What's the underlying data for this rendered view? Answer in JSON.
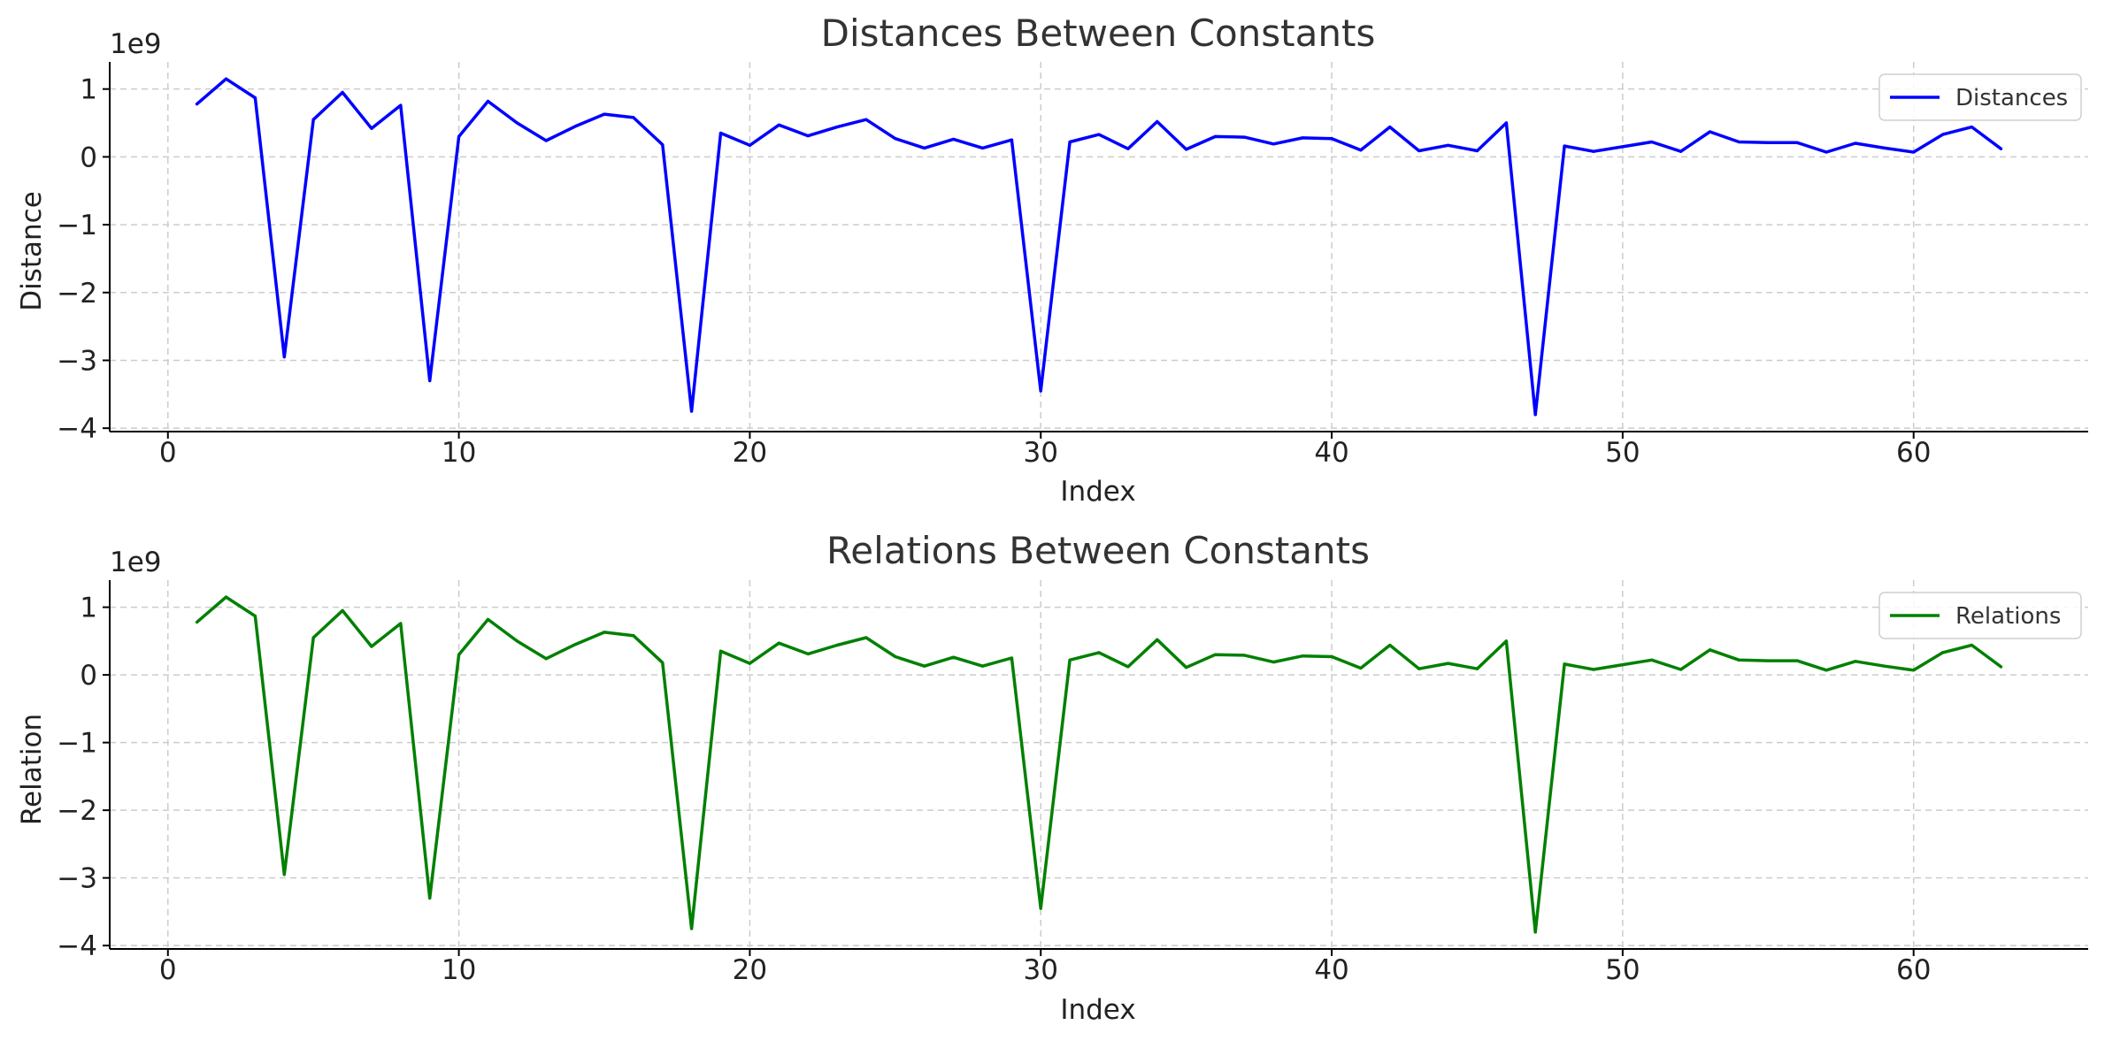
{
  "chart_data": [
    {
      "type": "line",
      "title": "Distances Between Constants",
      "xlabel": "Index",
      "ylabel": "Distance",
      "y_offset_label": "1e9",
      "xlim": [
        -2,
        66
      ],
      "ylim": [
        -4.05,
        1.4
      ],
      "xticks": [
        0,
        10,
        20,
        30,
        40,
        50,
        60
      ],
      "yticks": [
        -4,
        -3,
        -2,
        -1,
        0,
        1
      ],
      "grid": true,
      "legend_position": "top-right",
      "series": [
        {
          "name": "Distances",
          "color": "#0000ff",
          "x": [
            1,
            2,
            3,
            4,
            5,
            6,
            7,
            8,
            9,
            10,
            11,
            12,
            13,
            14,
            15,
            16,
            17,
            18,
            19,
            20,
            21,
            22,
            23,
            24,
            25,
            26,
            27,
            28,
            29,
            30,
            31,
            32,
            33,
            34,
            35,
            36,
            37,
            38,
            39,
            40,
            41,
            42,
            43,
            44,
            45,
            46,
            47,
            48,
            49,
            50,
            51,
            52,
            53,
            54,
            55,
            56,
            57,
            58,
            59,
            60,
            61,
            62,
            63
          ],
          "y": [
            0.78,
            1.15,
            0.87,
            -2.95,
            0.55,
            0.95,
            0.42,
            0.76,
            -3.3,
            0.3,
            0.82,
            0.5,
            0.24,
            0.45,
            0.63,
            0.58,
            0.18,
            -3.75,
            0.35,
            0.17,
            0.47,
            0.31,
            0.44,
            0.55,
            0.27,
            0.13,
            0.26,
            0.13,
            0.25,
            -3.45,
            0.22,
            0.33,
            0.12,
            0.52,
            0.11,
            0.3,
            0.29,
            0.19,
            0.28,
            0.27,
            0.1,
            0.44,
            0.09,
            0.17,
            0.09,
            0.5,
            -3.8,
            0.16,
            0.08,
            0.15,
            0.22,
            0.08,
            0.37,
            0.22,
            0.21,
            0.21,
            0.07,
            0.2,
            0.13,
            0.07,
            0.33,
            0.44,
            0.12
          ]
        }
      ]
    },
    {
      "type": "line",
      "title": "Relations Between Constants",
      "xlabel": "Index",
      "ylabel": "Relation",
      "y_offset_label": "1e9",
      "xlim": [
        -2,
        66
      ],
      "ylim": [
        -4.05,
        1.4
      ],
      "xticks": [
        0,
        10,
        20,
        30,
        40,
        50,
        60
      ],
      "yticks": [
        -4,
        -3,
        -2,
        -1,
        0,
        1
      ],
      "grid": true,
      "legend_position": "top-right",
      "series": [
        {
          "name": "Relations",
          "color": "#008000",
          "x": [
            1,
            2,
            3,
            4,
            5,
            6,
            7,
            8,
            9,
            10,
            11,
            12,
            13,
            14,
            15,
            16,
            17,
            18,
            19,
            20,
            21,
            22,
            23,
            24,
            25,
            26,
            27,
            28,
            29,
            30,
            31,
            32,
            33,
            34,
            35,
            36,
            37,
            38,
            39,
            40,
            41,
            42,
            43,
            44,
            45,
            46,
            47,
            48,
            49,
            50,
            51,
            52,
            53,
            54,
            55,
            56,
            57,
            58,
            59,
            60,
            61,
            62,
            63
          ],
          "y": [
            0.78,
            1.15,
            0.87,
            -2.95,
            0.55,
            0.95,
            0.42,
            0.76,
            -3.3,
            0.3,
            0.82,
            0.5,
            0.24,
            0.45,
            0.63,
            0.58,
            0.18,
            -3.75,
            0.35,
            0.17,
            0.47,
            0.31,
            0.44,
            0.55,
            0.27,
            0.13,
            0.26,
            0.13,
            0.25,
            -3.45,
            0.22,
            0.33,
            0.12,
            0.52,
            0.11,
            0.3,
            0.29,
            0.19,
            0.28,
            0.27,
            0.1,
            0.44,
            0.09,
            0.17,
            0.09,
            0.5,
            -3.8,
            0.16,
            0.08,
            0.15,
            0.22,
            0.08,
            0.37,
            0.22,
            0.21,
            0.21,
            0.07,
            0.2,
            0.13,
            0.07,
            0.33,
            0.44,
            0.12
          ]
        }
      ]
    }
  ]
}
